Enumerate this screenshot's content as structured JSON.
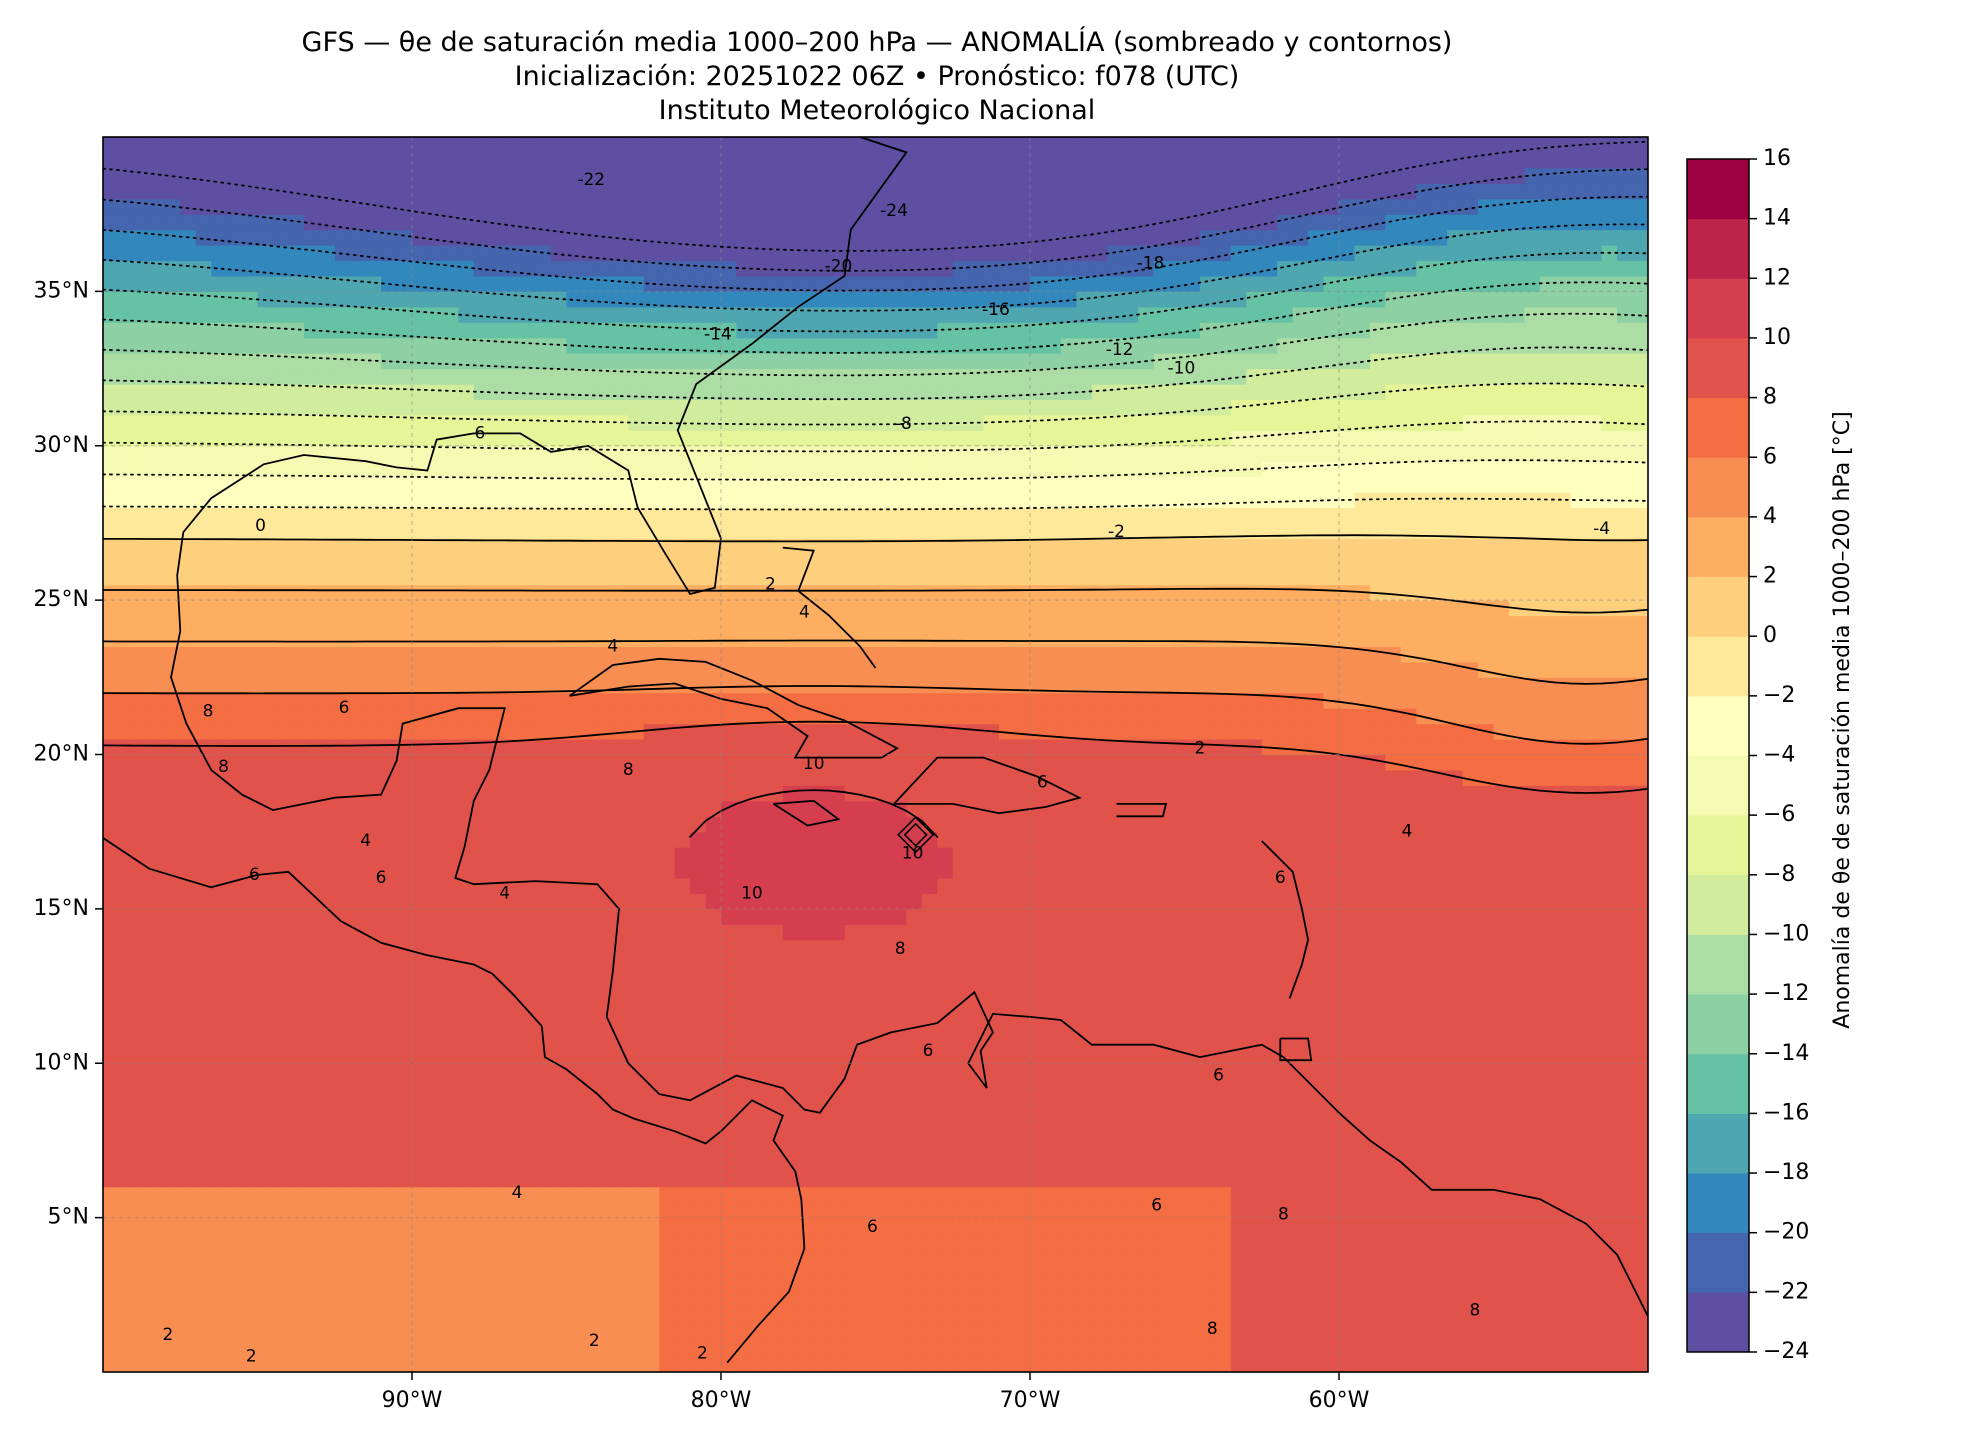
{
  "title": {
    "line1": "GFS — θe de saturación media 1000–200 hPa — ANOMALÍA (sombreado y contornos)",
    "line2": "Inicialización: 20251022 06Z   •   Pronóstico: f078 (UTC)",
    "line3": "Instituto Meteorológico Nacional"
  },
  "map": {
    "lon_range": [
      -100,
      -50
    ],
    "lat_range": [
      0,
      40
    ],
    "lon_ticks": [
      {
        "v": -90,
        "label": "90°W"
      },
      {
        "v": -80,
        "label": "80°W"
      },
      {
        "v": -70,
        "label": "70°W"
      },
      {
        "v": -60,
        "label": "60°W"
      }
    ],
    "lat_ticks": [
      {
        "v": 5,
        "label": "5°N"
      },
      {
        "v": 10,
        "label": "10°N"
      },
      {
        "v": 15,
        "label": "15°N"
      },
      {
        "v": 20,
        "label": "20°N"
      },
      {
        "v": 25,
        "label": "25°N"
      },
      {
        "v": 30,
        "label": "30°N"
      },
      {
        "v": 35,
        "label": "35°N"
      }
    ],
    "contour_labels": [
      {
        "text": "-24",
        "lon": -74.4,
        "lat": 37.6
      },
      {
        "text": "-22",
        "lon": -84.2,
        "lat": 38.6
      },
      {
        "text": "-20",
        "lon": -76.2,
        "lat": 35.8
      },
      {
        "text": "-18",
        "lon": -66.1,
        "lat": 35.9
      },
      {
        "text": "-16",
        "lon": -71.1,
        "lat": 34.4
      },
      {
        "text": "-14",
        "lon": -80.1,
        "lat": 33.6
      },
      {
        "text": "-12",
        "lon": -67.1,
        "lat": 33.1
      },
      {
        "text": "-10",
        "lon": -65.1,
        "lat": 32.5
      },
      {
        "text": "-8",
        "lon": -74.1,
        "lat": 30.7
      },
      {
        "text": "-6",
        "lon": -87.9,
        "lat": 30.4
      },
      {
        "text": "-2",
        "lon": -67.2,
        "lat": 27.2
      },
      {
        "text": "-4",
        "lon": -51.5,
        "lat": 27.3
      },
      {
        "text": "0",
        "lon": -94.9,
        "lat": 27.4
      },
      {
        "text": "2",
        "lon": -78.4,
        "lat": 25.5
      },
      {
        "text": "4",
        "lon": -77.3,
        "lat": 24.6
      },
      {
        "text": "4",
        "lon": -83.5,
        "lat": 23.5
      },
      {
        "text": "6",
        "lon": -92.2,
        "lat": 21.5
      },
      {
        "text": "8",
        "lon": -96.6,
        "lat": 21.4
      },
      {
        "text": "8",
        "lon": -96.1,
        "lat": 19.6
      },
      {
        "text": "8",
        "lon": -83.0,
        "lat": 19.5
      },
      {
        "text": "10",
        "lon": -77.0,
        "lat": 19.7
      },
      {
        "text": "10",
        "lon": -79.0,
        "lat": 15.5
      },
      {
        "text": "10",
        "lon": -73.8,
        "lat": 16.8
      },
      {
        "text": "8",
        "lon": -74.2,
        "lat": 13.7
      },
      {
        "text": "6",
        "lon": -69.6,
        "lat": 19.1
      },
      {
        "text": "4",
        "lon": -91.5,
        "lat": 17.2
      },
      {
        "text": "6",
        "lon": -91.0,
        "lat": 16.0
      },
      {
        "text": "4",
        "lon": -87.0,
        "lat": 15.5
      },
      {
        "text": "6",
        "lon": -95.1,
        "lat": 16.1
      },
      {
        "text": "6",
        "lon": -61.9,
        "lat": 16.0
      },
      {
        "text": "4",
        "lon": -57.8,
        "lat": 17.5
      },
      {
        "text": "2",
        "lon": -64.5,
        "lat": 20.2
      },
      {
        "text": "4",
        "lon": -86.6,
        "lat": 5.8
      },
      {
        "text": "6",
        "lon": -73.3,
        "lat": 10.4
      },
      {
        "text": "6",
        "lon": -63.9,
        "lat": 9.6
      },
      {
        "text": "6",
        "lon": -65.9,
        "lat": 5.4
      },
      {
        "text": "8",
        "lon": -61.8,
        "lat": 5.1
      },
      {
        "text": "6",
        "lon": -75.1,
        "lat": 4.7
      },
      {
        "text": "8",
        "lon": -64.1,
        "lat": 1.4
      },
      {
        "text": "8",
        "lon": -55.6,
        "lat": 2.0
      },
      {
        "text": "2",
        "lon": -97.9,
        "lat": 1.2
      },
      {
        "text": "2",
        "lon": -95.2,
        "lat": 0.5
      },
      {
        "text": "2",
        "lon": -84.1,
        "lat": 1.0
      },
      {
        "text": "2",
        "lon": -80.6,
        "lat": 0.6
      }
    ]
  },
  "colorbar": {
    "label": "Anomalía de θe de saturación media 1000–200 hPa [°C]",
    "levels": [
      -24,
      -22,
      -20,
      -18,
      -16,
      -14,
      -12,
      -10,
      -8,
      -6,
      -4,
      -2,
      0,
      2,
      4,
      6,
      8,
      10,
      12,
      14,
      16
    ],
    "tick_labels": [
      "−24",
      "−22",
      "−20",
      "−18",
      "−16",
      "−14",
      "−12",
      "−10",
      "−8",
      "−6",
      "−4",
      "−2",
      "0",
      "2",
      "4",
      "6",
      "8",
      "10",
      "12",
      "14",
      "16"
    ],
    "colors": [
      "#5e4fa2",
      "#4565ae",
      "#3288bd",
      "#4ea6b1",
      "#66c2a5",
      "#8dd0a4",
      "#abdda4",
      "#d1ec9c",
      "#e6f598",
      "#f4fab1",
      "#ffffbf",
      "#fee99a",
      "#fed07e",
      "#fdae61",
      "#f98e52",
      "#f46d43",
      "#e1524a",
      "#d53e4f",
      "#be2449",
      "#9e0142"
    ]
  }
}
